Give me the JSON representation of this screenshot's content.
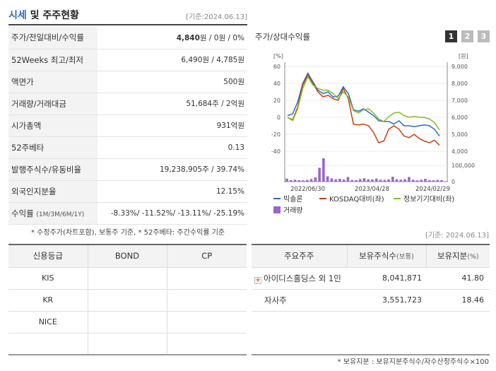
{
  "header": {
    "title_main": "시세",
    "title_rest": " 및 주주현황",
    "date": "[기준:2024.06.13]"
  },
  "quote": {
    "rows": [
      {
        "label": "주가/전일대비/수익률",
        "value_bold": "4,840",
        "value_rest": "원 / 0원 / 0%"
      },
      {
        "label": "52Weeks 최고/최저",
        "value": "6,490원 / 4,785원"
      },
      {
        "label": "액면가",
        "value": "500원"
      },
      {
        "label": "거래량/거래대금",
        "value": "51,684주 / 2억원"
      },
      {
        "label": "시가총액",
        "value": "931억원"
      },
      {
        "label": "52주베타",
        "value": "0.13"
      },
      {
        "label": "발행주식수/유동비율",
        "value": "19,238,905주 / 39.74%"
      },
      {
        "label": "외국인지분율",
        "value": "12.15%"
      },
      {
        "label": "수익률",
        "label_small": "(1M/3M/6M/1Y)",
        "value": "-8.33%/ -11.52%/ -13.11%/ -25.19%"
      }
    ],
    "note": "* 수정주가(차트포함), 보통주 기준, * 52주베타: 주간수익률 기준"
  },
  "chart_panel": {
    "title": "주가/상대수익률",
    "tabs": [
      "1",
      "2",
      "3"
    ]
  },
  "chart_data": {
    "type": "line",
    "x_ticks": [
      "2022/06/30",
      "2023/04/28",
      "2024/02/29"
    ],
    "left_axis": {
      "unit": "[%]",
      "ticks": [
        60,
        40,
        20,
        0,
        -20,
        -40
      ]
    },
    "right_axis": {
      "unit": "[원]",
      "ticks": [
        "9,000",
        "8,000",
        "7,000",
        "6,000",
        "5,000",
        "4,000"
      ]
    },
    "volume_axis": {
      "ticks": [
        "100,000",
        "0"
      ]
    },
    "series": [
      {
        "name": "빅솔론",
        "color": "#2a6ad0",
        "values": [
          2,
          4,
          18,
          40,
          52,
          42,
          32,
          28,
          30,
          24,
          25,
          36,
          28,
          9,
          7,
          10,
          6,
          2,
          -4,
          -5,
          -5,
          -8,
          -4,
          -10,
          -10,
          -11,
          -10,
          -9,
          -10,
          -14,
          -22
        ]
      },
      {
        "name": "KOSDAQ대비(좌)",
        "color": "#d03a10",
        "values": [
          0,
          -3,
          12,
          38,
          50,
          40,
          30,
          24,
          26,
          22,
          20,
          34,
          22,
          -8,
          -9,
          -8,
          -10,
          -18,
          -30,
          -28,
          -14,
          -10,
          -14,
          -22,
          -24,
          -20,
          -25,
          -28,
          -30,
          -27,
          -33
        ]
      },
      {
        "name": "정보기기대비(좌)",
        "color": "#88bb22",
        "values": [
          0,
          -4,
          10,
          34,
          48,
          38,
          34,
          32,
          32,
          28,
          22,
          30,
          24,
          8,
          5,
          9,
          10,
          5,
          -2,
          -5,
          1,
          5,
          6,
          2,
          0,
          1,
          0,
          0,
          -2,
          -6,
          -15
        ]
      }
    ],
    "volume": {
      "name": "거래량",
      "color": "#9966cc",
      "values": [
        14,
        7,
        9,
        7,
        6,
        8,
        12,
        20,
        65,
        110,
        25,
        15,
        11,
        13,
        10,
        22,
        8,
        7,
        12,
        16,
        11,
        10,
        14,
        9,
        8,
        10,
        23,
        11,
        9,
        12,
        22,
        9,
        6,
        9,
        13,
        7,
        6,
        8,
        7
      ]
    },
    "ylim_left": [
      -40,
      60
    ],
    "ylim_volume": [
      0,
      100000
    ]
  },
  "date2": "[기준: 2024.06.13]",
  "credit": {
    "headers": [
      "신용등급",
      "BOND",
      "CP"
    ],
    "rows": [
      [
        "KIS",
        "",
        ""
      ],
      [
        "KR",
        "",
        ""
      ],
      [
        "NICE",
        "",
        ""
      ],
      [
        "",
        "",
        ""
      ]
    ]
  },
  "shareholders": {
    "headers": {
      "name": "주요주주",
      "shares": "보유주식수",
      "shares_small": "(보통)",
      "pct": "보유지분",
      "pct_small": "(%)"
    },
    "rows": [
      {
        "name": "아이디스홀딩스 외 1인",
        "shares": "8,041,871",
        "pct": "41.80",
        "expand_icon": true
      },
      {
        "name": "자사주",
        "shares": "3,551,723",
        "pct": "18.46",
        "expand_icon": false
      }
    ],
    "note": "* 보유지분 : 보유지분주식수/자수산정주식수×100"
  }
}
